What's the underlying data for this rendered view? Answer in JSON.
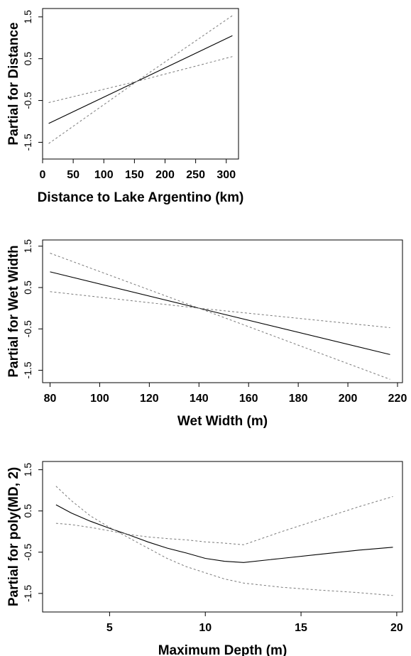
{
  "chart_data": [
    {
      "type": "line",
      "xlabel": "Distance to Lake Argentino (km)",
      "ylabel": "Partial for Distance",
      "xlim": [
        0,
        320
      ],
      "ylim": [
        -1.9,
        1.7
      ],
      "x_ticks": [
        0,
        50,
        100,
        150,
        200,
        250,
        300
      ],
      "y_ticks": [
        -1.5,
        -0.5,
        0.5,
        1.5
      ],
      "grid": false,
      "series": [
        {
          "x": [
            10,
            310
          ],
          "y": [
            -1.05,
            1.05
          ],
          "style": "solid"
        },
        {
          "x": [
            10,
            160,
            310
          ],
          "y": [
            -0.55,
            -0.02,
            0.55
          ],
          "style": "dashed"
        },
        {
          "x": [
            10,
            160,
            310
          ],
          "y": [
            -1.53,
            0.02,
            1.53
          ],
          "style": "dashed"
        }
      ]
    },
    {
      "type": "line",
      "xlabel": "Wet Width (m)",
      "ylabel": "Partial for Wet Width",
      "xlim": [
        77,
        222
      ],
      "ylim": [
        -1.8,
        1.65
      ],
      "x_ticks": [
        80,
        100,
        120,
        140,
        160,
        180,
        200,
        220
      ],
      "y_ticks": [
        -1.5,
        -0.5,
        0.5,
        1.5
      ],
      "grid": false,
      "series": [
        {
          "x": [
            80,
            140,
            217
          ],
          "y": [
            0.88,
            0.0,
            -1.12
          ],
          "style": "solid"
        },
        {
          "x": [
            80,
            140,
            217
          ],
          "y": [
            0.4,
            0.0,
            -0.47
          ],
          "style": "dashed"
        },
        {
          "x": [
            80,
            140,
            217
          ],
          "y": [
            1.33,
            0.0,
            -1.72
          ],
          "style": "dashed"
        }
      ]
    },
    {
      "type": "line",
      "xlabel": "Maximum Depth (m)",
      "ylabel": "Partial for poly(MD, 2)",
      "xlim": [
        1.5,
        20.3
      ],
      "ylim": [
        -1.95,
        1.7
      ],
      "x_ticks": [
        5,
        10,
        15,
        20
      ],
      "y_ticks": [
        -1.5,
        -0.5,
        0.5,
        1.5
      ],
      "grid": false,
      "series": [
        {
          "x": [
            2.2,
            3,
            4,
            5,
            6,
            7,
            8,
            9,
            10,
            11,
            12,
            14,
            16,
            18,
            19.8
          ],
          "y": [
            0.65,
            0.45,
            0.25,
            0.08,
            -0.08,
            -0.25,
            -0.4,
            -0.52,
            -0.65,
            -0.72,
            -0.75,
            -0.65,
            -0.55,
            -0.45,
            -0.38
          ],
          "style": "solid"
        },
        {
          "x": [
            2.2,
            3,
            4,
            5,
            6,
            7,
            8,
            9,
            10,
            11,
            12,
            14,
            16,
            18,
            19.8
          ],
          "y": [
            0.2,
            0.17,
            0.1,
            0.02,
            -0.07,
            -0.13,
            -0.17,
            -0.2,
            -0.25,
            -0.28,
            -0.32,
            0.0,
            0.3,
            0.6,
            0.85
          ],
          "style": "dashed"
        },
        {
          "x": [
            2.2,
            3,
            4,
            5,
            6,
            7,
            8,
            9,
            10,
            11,
            12,
            14,
            16,
            18,
            19.8
          ],
          "y": [
            1.1,
            0.75,
            0.38,
            0.1,
            -0.15,
            -0.4,
            -0.65,
            -0.85,
            -1.0,
            -1.15,
            -1.25,
            -1.35,
            -1.42,
            -1.48,
            -1.55
          ],
          "style": "dashed"
        }
      ]
    }
  ]
}
